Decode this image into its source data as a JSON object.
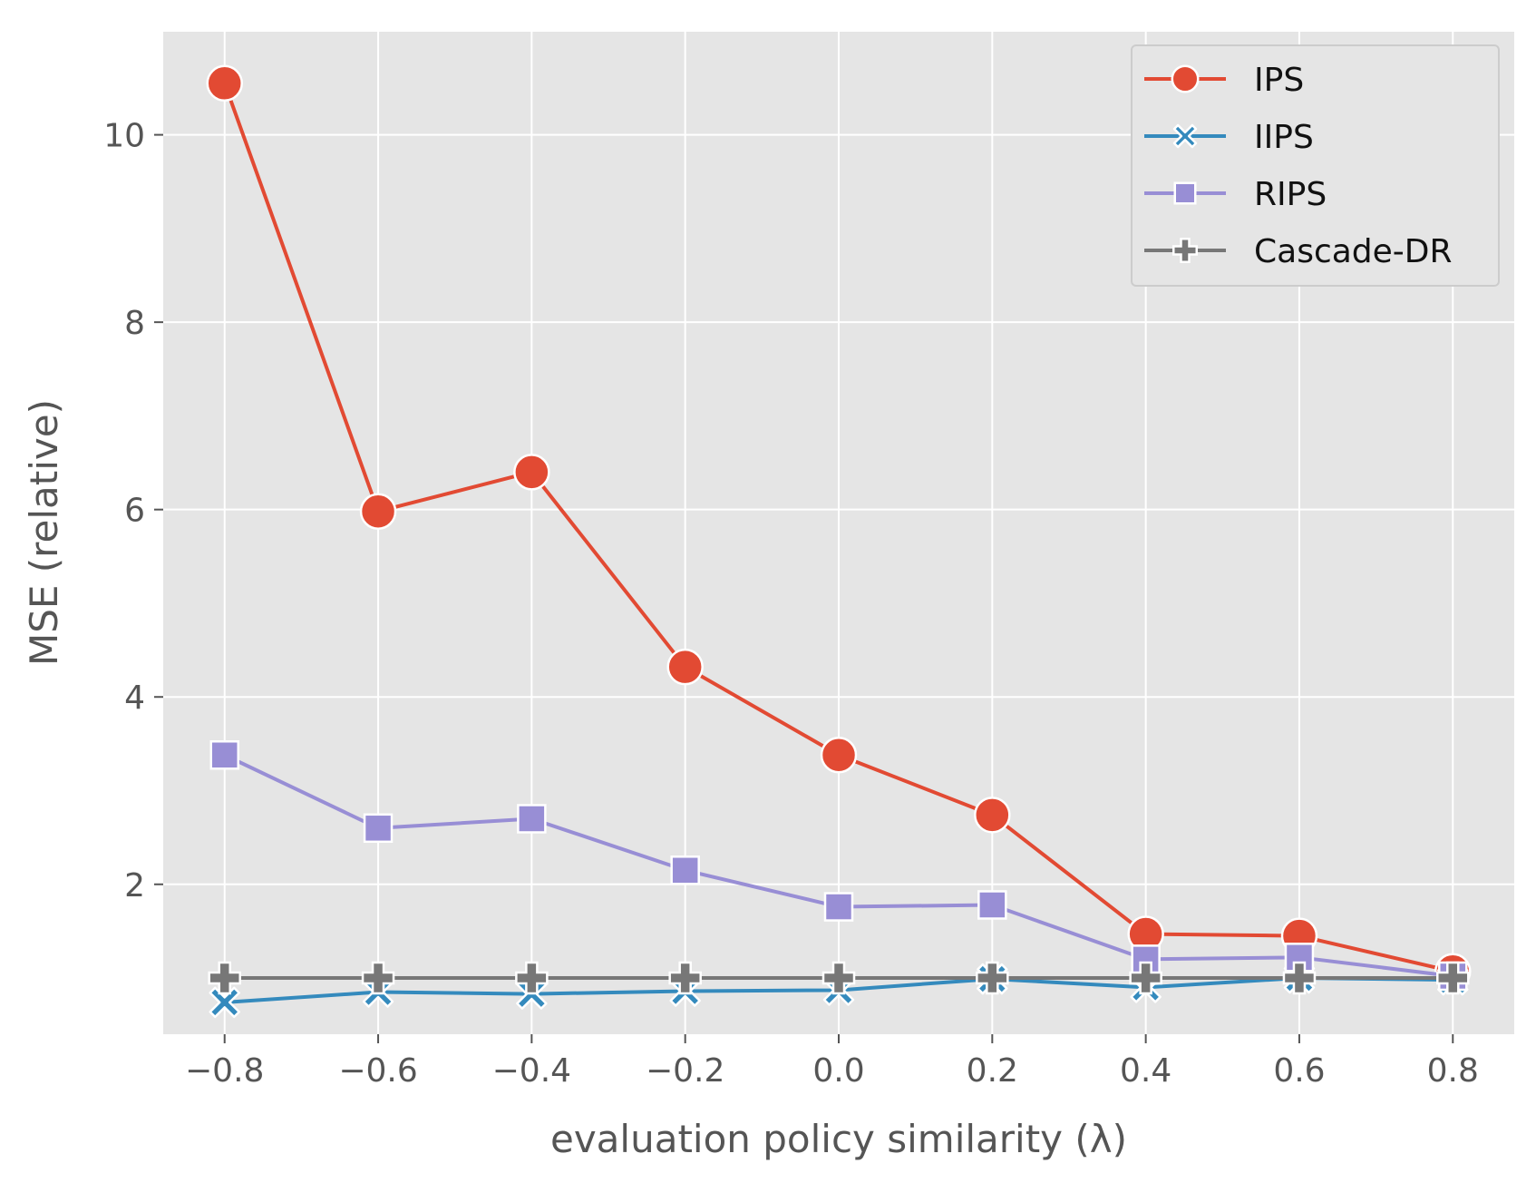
{
  "chart_data": {
    "type": "line",
    "title": "",
    "xlabel": "evaluation policy similarity (λ)",
    "ylabel": "MSE (relative)",
    "x": [
      -0.8,
      -0.6,
      -0.4,
      -0.2,
      0.0,
      0.2,
      0.4,
      0.6,
      0.8
    ],
    "xticks": [
      -0.8,
      -0.6,
      -0.4,
      -0.2,
      0.0,
      0.2,
      0.4,
      0.6,
      0.8
    ],
    "xtick_labels": [
      "−0.8",
      "−0.6",
      "−0.4",
      "−0.2",
      "0.0",
      "0.2",
      "0.4",
      "0.6",
      "0.8"
    ],
    "yticks": [
      2,
      4,
      6,
      8,
      10
    ],
    "ytick_labels": [
      "2",
      "4",
      "6",
      "8",
      "10"
    ],
    "xlim": [
      -0.88,
      0.88
    ],
    "ylim": [
      0.4,
      11.1
    ],
    "grid": true,
    "legend_position": "top-right",
    "series": [
      {
        "name": "IPS",
        "color": "#e24a33",
        "marker": "circle",
        "values": [
          10.55,
          5.98,
          6.4,
          4.32,
          3.38,
          2.74,
          1.47,
          1.45,
          1.07
        ]
      },
      {
        "name": "IIPS",
        "color": "#348abd",
        "marker": "x",
        "values": [
          0.74,
          0.85,
          0.83,
          0.86,
          0.87,
          0.99,
          0.9,
          1.0,
          0.98
        ]
      },
      {
        "name": "RIPS",
        "color": "#988ed5",
        "marker": "square",
        "values": [
          3.38,
          2.6,
          2.7,
          2.15,
          1.76,
          1.78,
          1.2,
          1.22,
          1.02
        ]
      },
      {
        "name": "Cascade-DR",
        "color": "#777777",
        "marker": "plus",
        "values": [
          1.0,
          1.0,
          1.0,
          1.0,
          1.0,
          1.0,
          1.0,
          1.0,
          1.0
        ]
      }
    ]
  }
}
